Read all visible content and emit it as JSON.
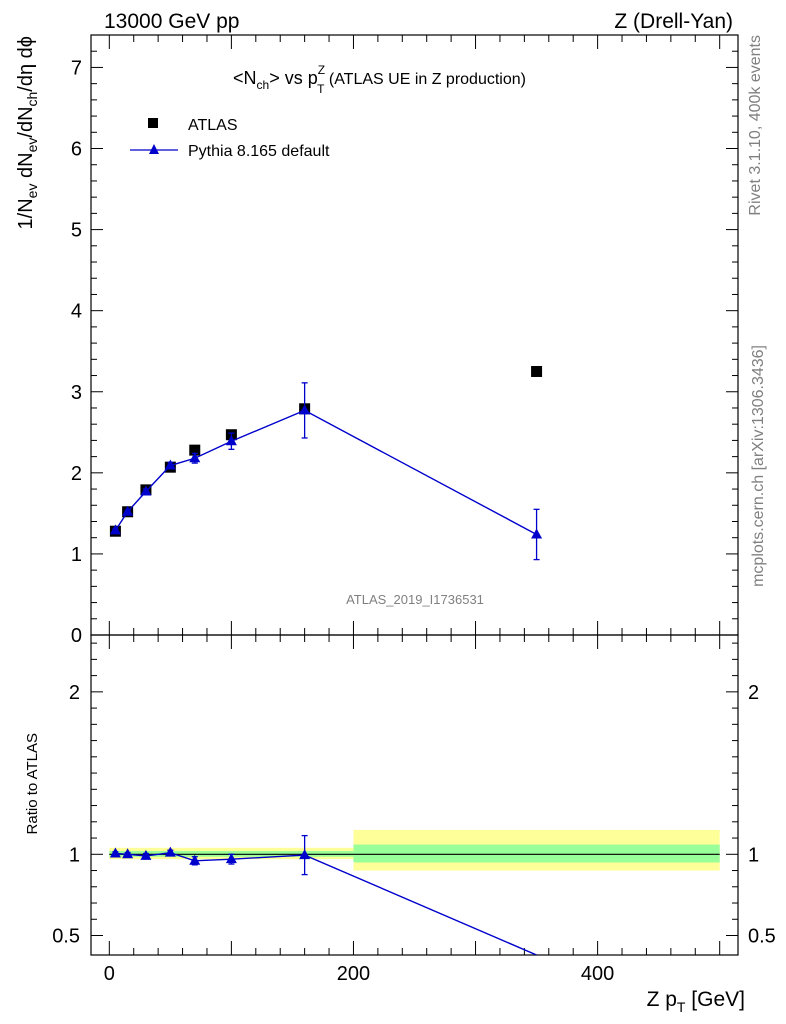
{
  "header": {
    "left": "13000 GeV pp",
    "right": "Z (Drell-Yan)"
  },
  "side": {
    "rivet": "Rivet 3.1.10,  400k events",
    "mcplots": "mcplots.cern.ch [arXiv:1306.3436]"
  },
  "watermark": "ATLAS_2019_I1736531",
  "title": {
    "pre": "<N",
    "ch": "ch",
    "mid": "> vs p",
    "supZ": "Z",
    "subT": "T",
    "post": " (ATLAS UE in Z production)"
  },
  "ylabel": {
    "p1": "1/N",
    "s1": "ev",
    "p2": " dN",
    "s2": "ev",
    "p3": "/dN",
    "s3": "ch",
    "p4": "/dη dϕ"
  },
  "ratio_ylabel": "Ratio to ATLAS",
  "xlabel": {
    "p1": "Z p",
    "sub": "T",
    "p2": " [GeV]"
  },
  "legend": {
    "data": "ATLAS",
    "mc": "Pythia 8.165 default"
  },
  "colors": {
    "data": "#000000",
    "mc": "#0000cc",
    "band_inner": "#99ff99",
    "band_outer": "#ffff99",
    "side_text": "#808080"
  },
  "chart_data": [
    {
      "type": "scatter",
      "panel": "main",
      "xlim": [
        -15,
        515
      ],
      "ylim": [
        0,
        7.4
      ],
      "yticks": [
        0,
        1,
        2,
        3,
        4,
        5,
        6,
        7
      ],
      "ytick_labels": [
        "0",
        "1",
        "2",
        "3",
        "4",
        "5",
        "6",
        "7"
      ],
      "series": [
        {
          "name": "ATLAS",
          "marker": "square",
          "x": [
            5,
            15,
            30,
            50,
            70,
            100,
            160,
            350
          ],
          "y": [
            1.28,
            1.52,
            1.79,
            2.07,
            2.28,
            2.47,
            2.79,
            3.25
          ]
        },
        {
          "name": "Pythia 8.165 default",
          "marker": "triangle",
          "line": true,
          "x": [
            5,
            15,
            30,
            50,
            70,
            100,
            160,
            350
          ],
          "y": [
            1.29,
            1.52,
            1.77,
            2.09,
            2.18,
            2.39,
            2.77,
            1.24
          ],
          "yerr": [
            0.02,
            0.02,
            0.03,
            0.04,
            0.06,
            0.1,
            0.34,
            0.31
          ]
        }
      ]
    },
    {
      "type": "scatter",
      "panel": "ratio",
      "xlim": [
        -15,
        515
      ],
      "ylim": [
        0.38,
        2.35
      ],
      "yticks": [
        0.5,
        1,
        2
      ],
      "ytick_labels": [
        "0.5",
        "1",
        "2"
      ],
      "xticks": [
        0,
        200,
        400
      ],
      "xtick_labels": [
        "0",
        "200",
        "400"
      ],
      "bands": [
        {
          "x0": 0,
          "x1": 200,
          "inner": [
            0.985,
            1.02
          ],
          "outer": [
            0.97,
            1.04
          ]
        },
        {
          "x0": 200,
          "x1": 500,
          "inner": [
            0.95,
            1.06
          ],
          "outer": [
            0.9,
            1.15
          ]
        }
      ],
      "series": [
        {
          "name": "Pythia 8.165 default",
          "marker": "triangle",
          "line": true,
          "x": [
            5,
            15,
            30,
            50,
            70,
            100,
            160,
            350
          ],
          "y": [
            1.005,
            1.0,
            0.99,
            1.01,
            0.96,
            0.97,
            0.995,
            0.38
          ],
          "yerr": [
            0.01,
            0.01,
            0.015,
            0.015,
            0.025,
            0.03,
            0.12,
            0.0
          ]
        }
      ]
    }
  ]
}
